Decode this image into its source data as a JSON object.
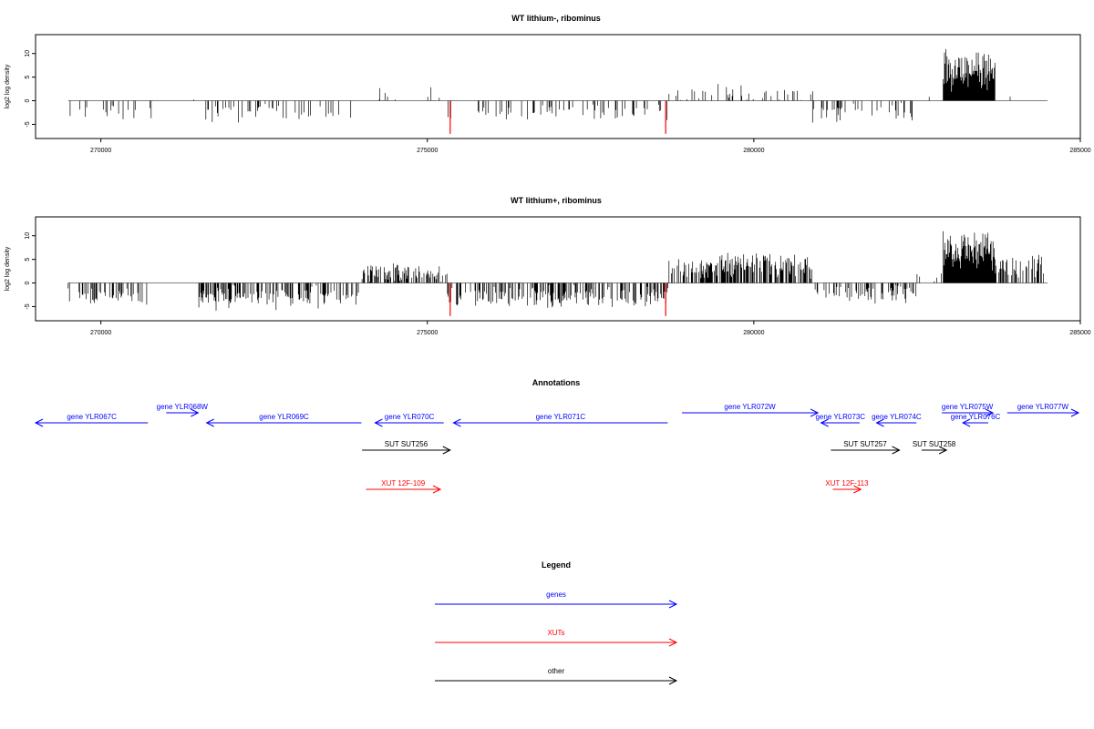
{
  "chart_data": [
    {
      "type": "bar",
      "title": "WT lithium-, ribominus",
      "ylabel": "log2 log density",
      "xlim": [
        269000,
        285000
      ],
      "ylim": [
        -8,
        14
      ],
      "x_ticks": [
        270000,
        275000,
        280000,
        285000
      ],
      "y_ticks": [
        -5,
        0,
        5,
        10
      ],
      "x_tick_labels": [
        "270000",
        "275000",
        "280000",
        "285000"
      ],
      "y_tick_labels": [
        "-5",
        "0",
        "5",
        "10"
      ],
      "series_color": "#000000",
      "highlight_color": "#ff0000",
      "profile_segments": [
        {
          "start": 269500,
          "end": 270800,
          "mean": -2.3,
          "amp": 1.4,
          "density": 0.04
        },
        {
          "start": 270800,
          "end": 271500,
          "mean": 0.8,
          "amp": 1.2,
          "density": 0.01
        },
        {
          "start": 271500,
          "end": 274000,
          "mean": -2.5,
          "amp": 1.6,
          "density": 0.06
        },
        {
          "start": 274000,
          "end": 275300,
          "mean": 0.5,
          "amp": 2.0,
          "density": 0.02
        },
        {
          "start": 275300,
          "end": 278700,
          "mean": -2.3,
          "amp": 1.5,
          "density": 0.06
        },
        {
          "start": 278700,
          "end": 280900,
          "mean": 1.5,
          "amp": 1.5,
          "density": 0.05
        },
        {
          "start": 280900,
          "end": 282500,
          "mean": -2.5,
          "amp": 1.8,
          "density": 0.06
        },
        {
          "start": 282500,
          "end": 282900,
          "mean": 1.0,
          "amp": 1.0,
          "density": 0.01
        },
        {
          "start": 282900,
          "end": 283700,
          "mean": 6.5,
          "amp": 3.5,
          "density": 0.35
        },
        {
          "start": 283700,
          "end": 284500,
          "mean": 1.0,
          "amp": 1.5,
          "density": 0.01
        }
      ],
      "highlight_points": [
        {
          "x": 275350,
          "y": -7
        },
        {
          "x": 278650,
          "y": -7
        }
      ]
    },
    {
      "type": "bar",
      "title": "WT lithium+, ribominus",
      "ylabel": "log2 log density",
      "xlim": [
        269000,
        285000
      ],
      "ylim": [
        -8,
        14
      ],
      "x_ticks": [
        270000,
        275000,
        280000,
        285000
      ],
      "y_ticks": [
        -5,
        0,
        5,
        10
      ],
      "x_tick_labels": [
        "270000",
        "275000",
        "280000",
        "285000"
      ],
      "y_tick_labels": [
        "-5",
        "0",
        "5",
        "10"
      ],
      "series_color": "#000000",
      "highlight_color": "#ff0000",
      "profile_segments": [
        {
          "start": 269500,
          "end": 270800,
          "mean": -3.0,
          "amp": 1.3,
          "density": 0.12
        },
        {
          "start": 270800,
          "end": 271500,
          "mean": 0.5,
          "amp": 1.0,
          "density": 0.01
        },
        {
          "start": 271500,
          "end": 274000,
          "mean": -3.0,
          "amp": 2.0,
          "density": 0.14
        },
        {
          "start": 274000,
          "end": 275300,
          "mean": 2.0,
          "amp": 1.8,
          "density": 0.14
        },
        {
          "start": 275300,
          "end": 278700,
          "mean": -3.0,
          "amp": 1.8,
          "density": 0.14
        },
        {
          "start": 278700,
          "end": 280900,
          "mean": 3.5,
          "amp": 2.0,
          "density": 0.2
        },
        {
          "start": 280900,
          "end": 282500,
          "mean": -2.0,
          "amp": 2.0,
          "density": 0.12
        },
        {
          "start": 282500,
          "end": 282900,
          "mean": 1.0,
          "amp": 1.5,
          "density": 0.02
        },
        {
          "start": 282900,
          "end": 283700,
          "mean": 7.0,
          "amp": 3.5,
          "density": 0.35
        },
        {
          "start": 283700,
          "end": 284500,
          "mean": 3.5,
          "amp": 2.0,
          "density": 0.12
        }
      ],
      "highlight_points": [
        {
          "x": 275350,
          "y": -7
        },
        {
          "x": 278650,
          "y": -7
        }
      ]
    }
  ],
  "annotations": {
    "title": "Annotations",
    "xlim": [
      269000,
      285000
    ],
    "features": [
      {
        "label": "gene YLR067C",
        "start": 269000,
        "end": 270720,
        "strand": "-",
        "kind": "gene",
        "row": 0
      },
      {
        "label": "gene YLR068W",
        "start": 271000,
        "end": 271490,
        "strand": "+",
        "kind": "gene",
        "row": 1
      },
      {
        "label": "gene YLR069C",
        "start": 271620,
        "end": 273990,
        "strand": "-",
        "kind": "gene",
        "row": 0
      },
      {
        "label": "gene YLR070C",
        "start": 274200,
        "end": 275250,
        "strand": "-",
        "kind": "gene",
        "row": 0
      },
      {
        "label": "gene YLR071C",
        "start": 275400,
        "end": 278680,
        "strand": "-",
        "kind": "gene",
        "row": 0
      },
      {
        "label": "gene YLR072W",
        "start": 278900,
        "end": 280980,
        "strand": "+",
        "kind": "gene",
        "row": 1
      },
      {
        "label": "gene YLR073C",
        "start": 281030,
        "end": 281620,
        "strand": "-",
        "kind": "gene",
        "row": 0
      },
      {
        "label": "gene YLR074C",
        "start": 281880,
        "end": 282490,
        "strand": "-",
        "kind": "gene",
        "row": 0
      },
      {
        "label": "gene YLR075W",
        "start": 282880,
        "end": 283660,
        "strand": "+",
        "kind": "gene",
        "row": 1
      },
      {
        "label": "gene YLR076C",
        "start": 283200,
        "end": 283590,
        "strand": "-",
        "kind": "gene",
        "row": 0
      },
      {
        "label": "gene YLR077W",
        "start": 283880,
        "end": 285150,
        "strand": "+",
        "kind": "gene",
        "row": 1
      },
      {
        "label": "SUT SUT256",
        "start": 274000,
        "end": 275350,
        "strand": "+",
        "kind": "other",
        "row": 2
      },
      {
        "label": "SUT SUT257",
        "start": 281180,
        "end": 282230,
        "strand": "+",
        "kind": "other",
        "row": 2
      },
      {
        "label": "SUT SUT258",
        "start": 282570,
        "end": 282950,
        "strand": "+",
        "kind": "other",
        "row": 2
      },
      {
        "label": "XUT 12F-109",
        "start": 274060,
        "end": 275200,
        "strand": "+",
        "kind": "xut",
        "row": 3
      },
      {
        "label": "XUT 12F-113",
        "start": 281210,
        "end": 281640,
        "strand": "+",
        "kind": "xut",
        "row": 3
      }
    ]
  },
  "legend": {
    "title": "Legend",
    "items": [
      {
        "label": "genes",
        "kind": "gene"
      },
      {
        "label": "XUTs",
        "kind": "xut"
      },
      {
        "label": "other",
        "kind": "other"
      }
    ]
  },
  "colors": {
    "gene": "#0000ff",
    "xut": "#ff0000",
    "other": "#000000",
    "axis": "#000000",
    "baseline": "#808080"
  }
}
